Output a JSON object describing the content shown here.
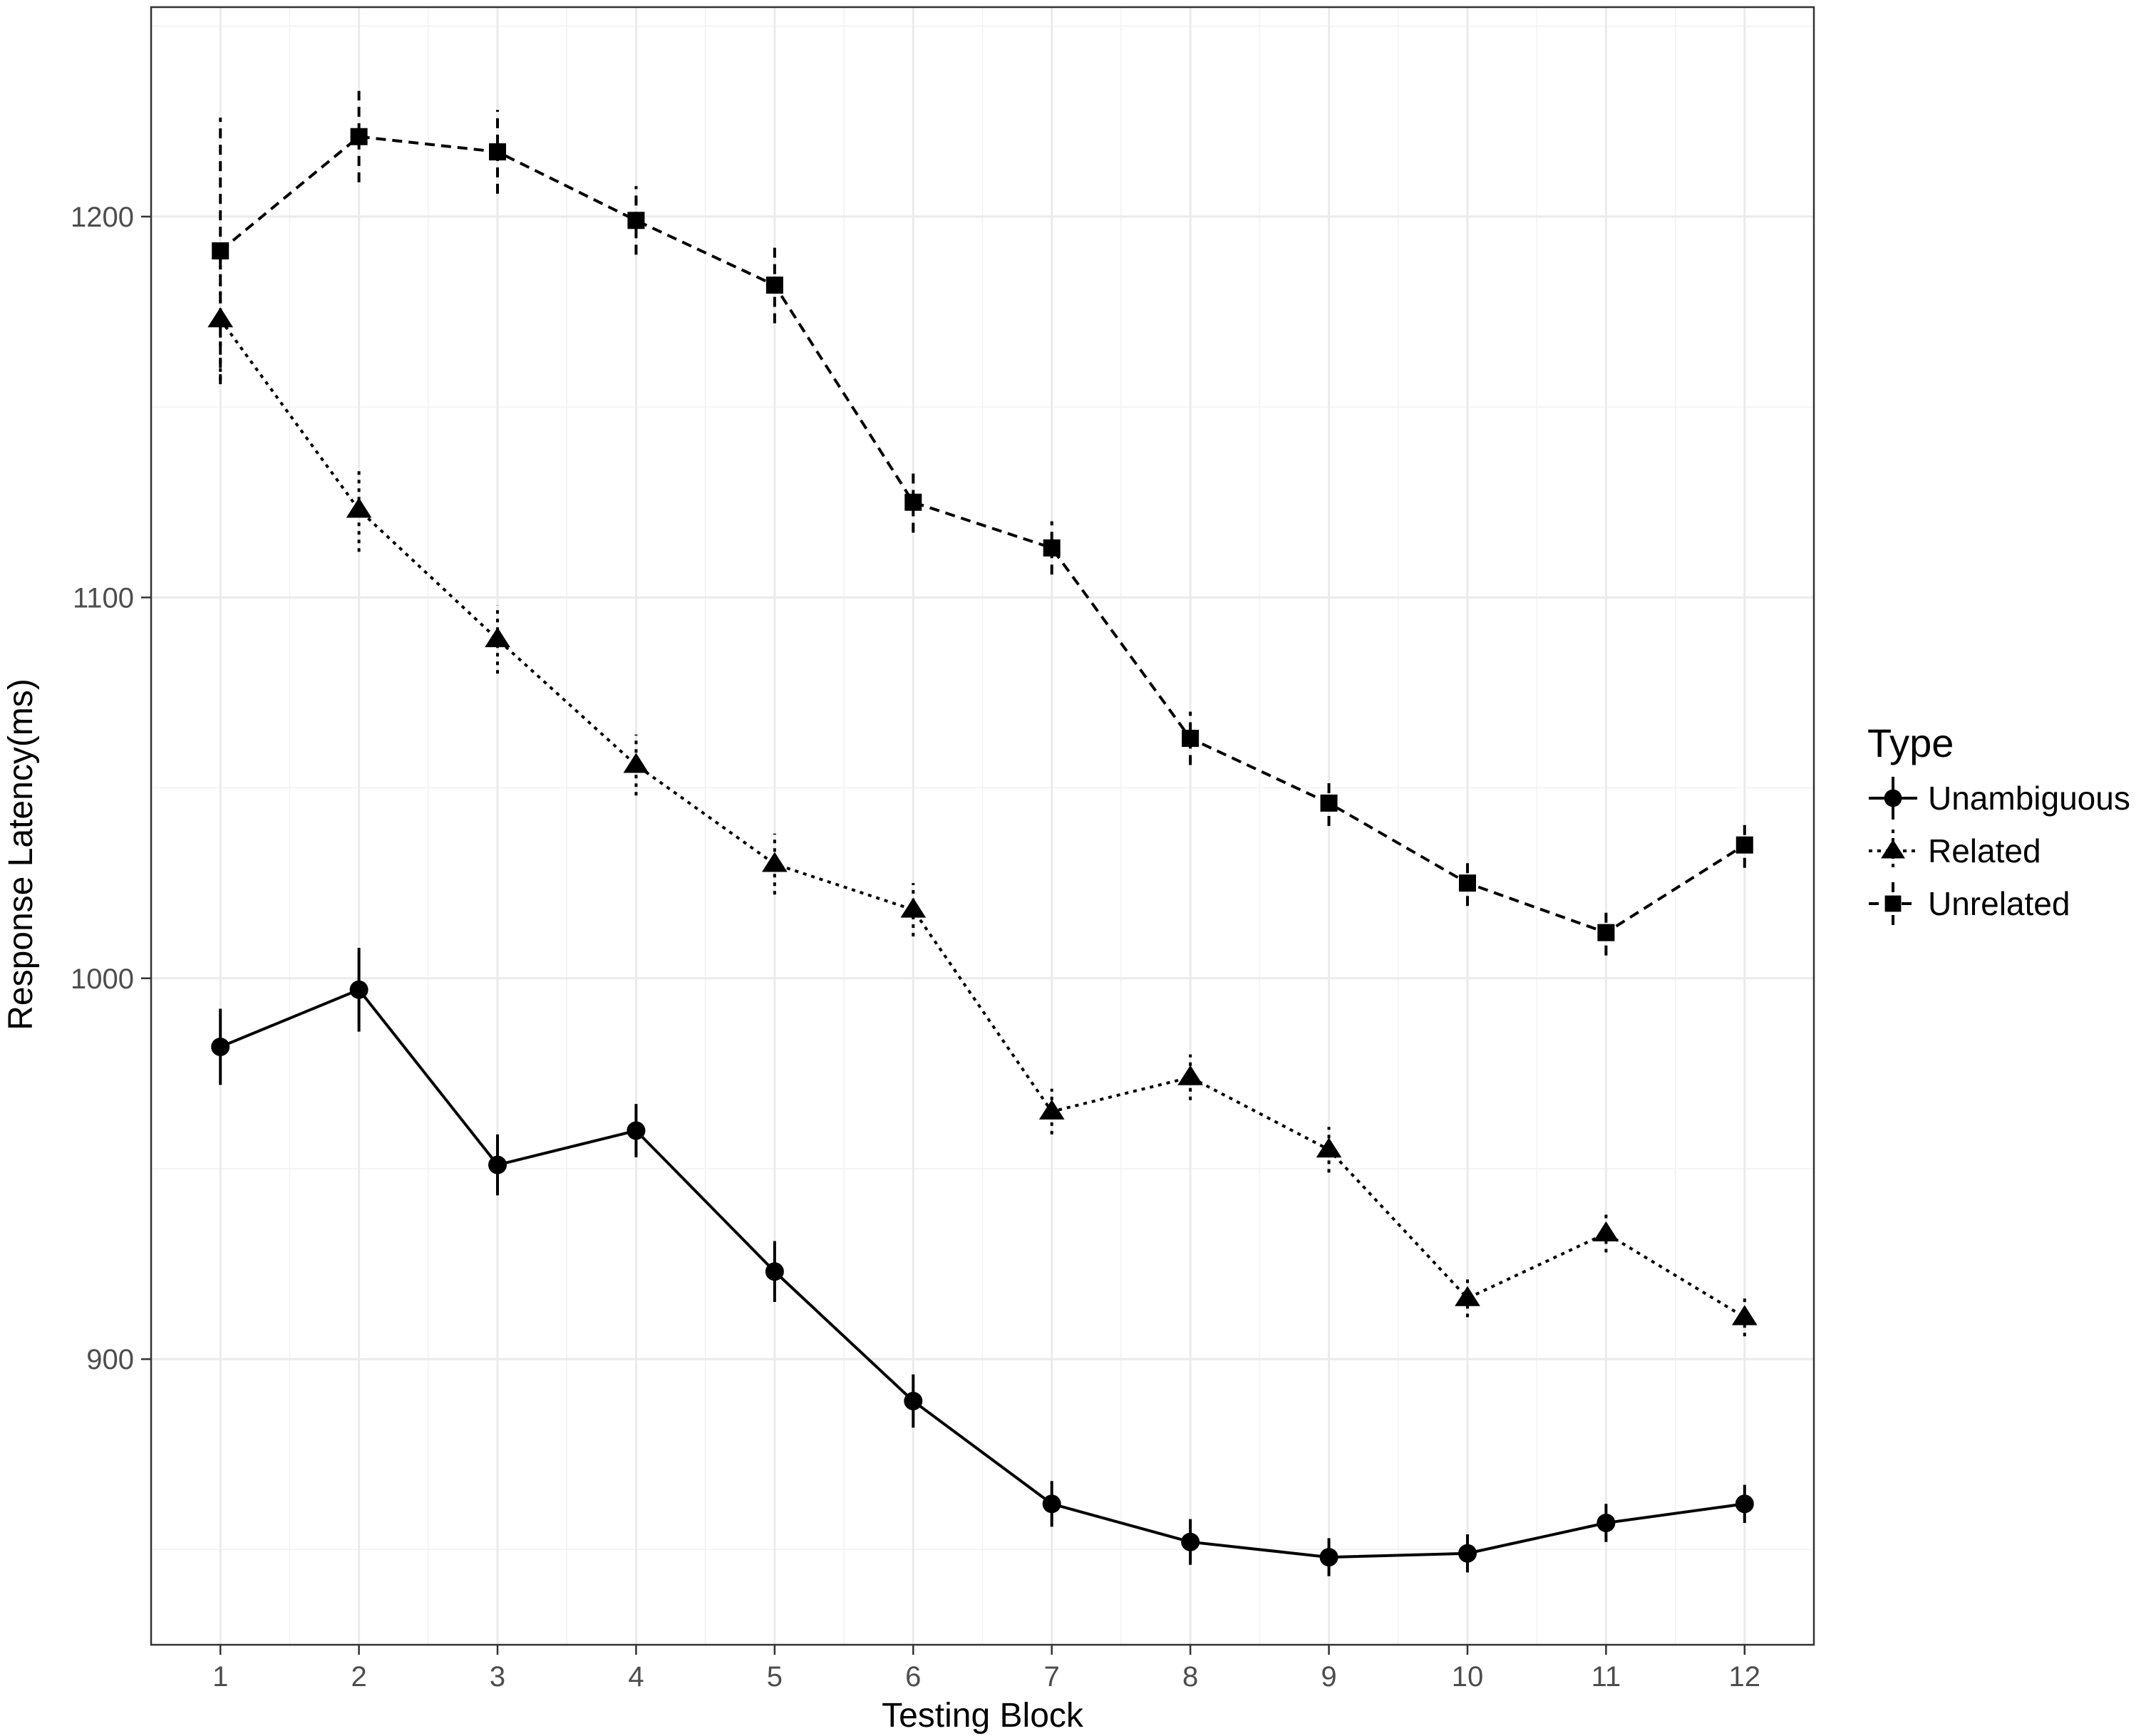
{
  "chart_data": {
    "type": "line",
    "xlabel": "Testing Block",
    "ylabel": "Response Latency(ms)",
    "x": [
      1,
      2,
      3,
      4,
      5,
      6,
      7,
      8,
      9,
      10,
      11,
      12
    ],
    "xlim": [
      0.5,
      12.5
    ],
    "ylim": [
      825,
      1255
    ],
    "yticks": [
      900,
      1000,
      1100,
      1200
    ],
    "grid": true,
    "legend": {
      "title": "Type",
      "position": "right"
    },
    "series": [
      {
        "name": "Unambiguous",
        "marker": "circle",
        "linestyle": "solid",
        "values": [
          982,
          997,
          951,
          960,
          923,
          889,
          862,
          852,
          848,
          849,
          857,
          862
        ],
        "error": [
          10,
          11,
          8,
          7,
          8,
          7,
          6,
          6,
          5,
          5,
          5,
          5
        ]
      },
      {
        "name": "Related",
        "marker": "triangle",
        "linestyle": "dotted",
        "values": [
          1173,
          1123,
          1089,
          1056,
          1030,
          1018,
          965,
          974,
          955,
          916,
          933,
          911
        ],
        "error": [
          16,
          11,
          9,
          8,
          8,
          7,
          6,
          6,
          6,
          5,
          5,
          5
        ]
      },
      {
        "name": "Unrelated",
        "marker": "square",
        "linestyle": "dashed",
        "values": [
          1191,
          1221,
          1217,
          1199,
          1182,
          1125,
          1113,
          1063,
          1046,
          1025,
          1012,
          1035
        ],
        "error": [
          35,
          12,
          11,
          9,
          10,
          8,
          7,
          7,
          6,
          6,
          6,
          6
        ]
      }
    ]
  }
}
